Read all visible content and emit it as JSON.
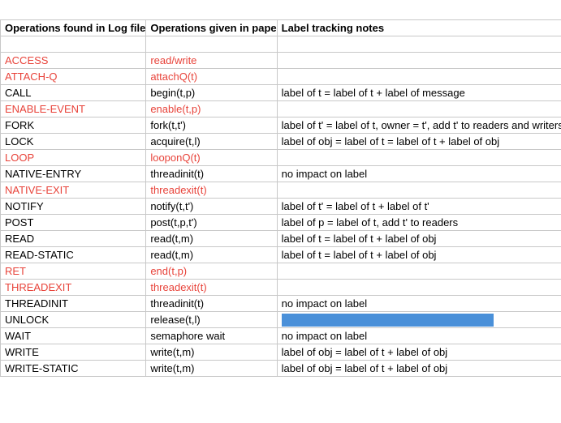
{
  "headers": [
    "Operations found in Log file",
    "Operations given in pape",
    "Label tracking notes"
  ],
  "colors": {
    "highlight_text": "#e8433a",
    "selected_fill": "#4a90d9",
    "grid": "#c8c8c8"
  },
  "rows": [
    {
      "op": "",
      "paper": "",
      "note": "",
      "red": false
    },
    {
      "op": "ACCESS",
      "paper": "read/write",
      "note": "",
      "red": true
    },
    {
      "op": "ATTACH-Q",
      "paper": "attachQ(t)",
      "note": "",
      "red": true
    },
    {
      "op": "CALL",
      "paper": "begin(t,p)",
      "note": "label of t = label of t + label of message",
      "red": false
    },
    {
      "op": "ENABLE-EVENT",
      "paper": "enable(t,p)",
      "note": "",
      "red": true
    },
    {
      "op": "FORK",
      "paper": "fork(t,t')",
      "note": "label of t' = label of t, owner = t', add t' to readers and writers",
      "red": false
    },
    {
      "op": "LOCK",
      "paper": "acquire(t,l)",
      "note": "label of obj = label of t = label of t + label of obj",
      "red": false
    },
    {
      "op": "LOOP",
      "paper": "looponQ(t)",
      "note": "",
      "red": true
    },
    {
      "op": "NATIVE-ENTRY",
      "paper": "threadinit(t)",
      "note": "no impact on label",
      "red": false
    },
    {
      "op": "NATIVE-EXIT",
      "paper": "threadexit(t)",
      "note": "",
      "red": true
    },
    {
      "op": "NOTIFY",
      "paper": "notify(t,t')",
      "note": "label of t' = label of t + label of t'",
      "red": false
    },
    {
      "op": "POST",
      "paper": "post(t,p,t')",
      "note": "label of p = label of t, add t' to readers",
      "red": false
    },
    {
      "op": "READ",
      "paper": "read(t,m)",
      "note": "label of t = label of t + label of obj",
      "red": false
    },
    {
      "op": "READ-STATIC",
      "paper": "read(t,m)",
      "note": "label of t = label of t + label of obj",
      "red": false
    },
    {
      "op": "RET",
      "paper": "end(t,p)",
      "note": "",
      "red": true
    },
    {
      "op": "THREADEXIT",
      "paper": "threadexit(t)",
      "note": "",
      "red": true
    },
    {
      "op": "THREADINIT",
      "paper": "threadinit(t)",
      "note": "no impact on label",
      "red": false
    },
    {
      "op": "UNLOCK",
      "paper": "release(t,l)",
      "note": "",
      "red": false,
      "selected": true
    },
    {
      "op": "WAIT",
      "paper": "semaphore wait",
      "note": "no impact on label",
      "red": false
    },
    {
      "op": "WRITE",
      "paper": "write(t,m)",
      "note": "label of obj = label of t + label of obj",
      "red": false
    },
    {
      "op": "WRITE-STATIC",
      "paper": "write(t,m)",
      "note": "label of obj = label of t + label of obj",
      "red": false
    }
  ]
}
